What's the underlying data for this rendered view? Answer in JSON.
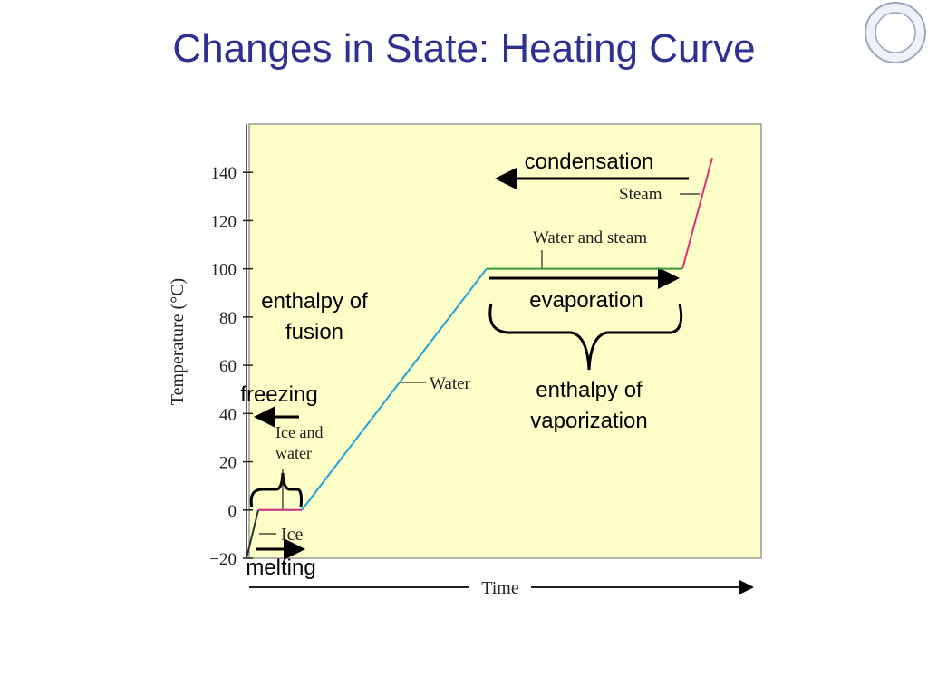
{
  "chart_data": {
    "type": "line",
    "title": "Changes in State: Heating Curve",
    "y_label": "Temperature (°C)",
    "x_label": "Time",
    "xlim": [
      0,
      100
    ],
    "ylim": [
      -20,
      160
    ],
    "yticks": [
      {
        "value": -20,
        "label": "−20"
      },
      0,
      20,
      40,
      60,
      80,
      100,
      120,
      140
    ],
    "series": [
      {
        "name": "Ice",
        "color": "#333333",
        "x": [
          0,
          2.3
        ],
        "values": [
          -20,
          0
        ]
      },
      {
        "name": "Ice and water",
        "color": "#c0308a",
        "x": [
          2.3,
          10.8
        ],
        "values": [
          0,
          0
        ]
      },
      {
        "name": "Water",
        "color": "#1fa3d6",
        "x": [
          10.8,
          46.8
        ],
        "values": [
          0,
          100
        ]
      },
      {
        "name": "Water and steam",
        "color": "#3a9a3a",
        "x": [
          46.8,
          85
        ],
        "values": [
          100,
          100
        ]
      },
      {
        "name": "Steam",
        "color": "#e0307a",
        "x": [
          85,
          90.8
        ],
        "values": [
          100,
          146
        ]
      }
    ],
    "annotations": [
      "condensation",
      "evaporation",
      "enthalpy of fusion",
      "freezing",
      "melting",
      "enthalpy of vaporization"
    ]
  }
}
